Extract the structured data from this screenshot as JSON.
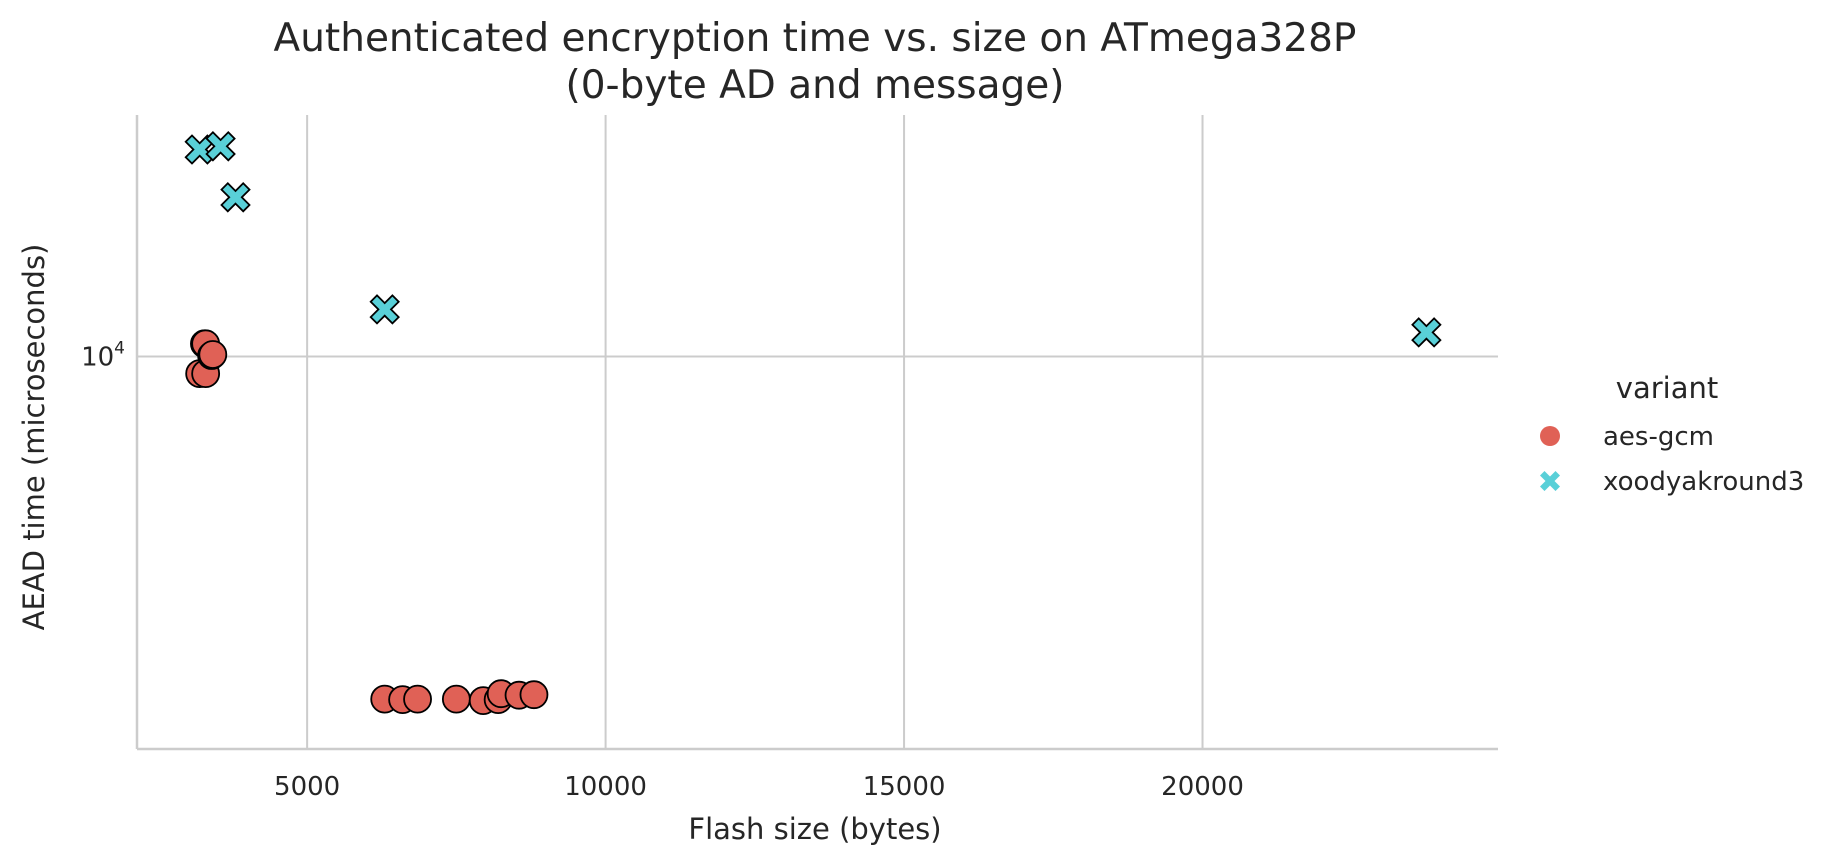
{
  "chart_data": {
    "type": "scatter",
    "title": [
      "Authenticated encryption time vs. size on ATmega328P",
      "(0-byte AD and message)"
    ],
    "xlabel": "Flash size (bytes)",
    "ylabel": "AEAD time (microseconds)",
    "xscale": "linear",
    "yscale": "log",
    "xlim": [
      2150,
      24950
    ],
    "ylim": [
      4520,
      16300
    ],
    "xticks": [
      5000,
      10000,
      15000,
      20000
    ],
    "xtick_labels": [
      "5000",
      "10000",
      "15000",
      "20000"
    ],
    "yticks": [
      10000
    ],
    "ytick_labels": [
      {
        "base": "10",
        "exp": "4"
      }
    ],
    "grid": true,
    "legend": {
      "title": "variant",
      "placement": "right",
      "entries": [
        "aes-gcm",
        "xoodyakround3"
      ]
    },
    "series": [
      {
        "name": "aes-gcm",
        "marker": "circle",
        "color": "#E06156",
        "points": [
          {
            "x": 3200,
            "y": 9660
          },
          {
            "x": 3300,
            "y": 9660
          },
          {
            "x": 3280,
            "y": 10260
          },
          {
            "x": 3300,
            "y": 10260
          },
          {
            "x": 3400,
            "y": 10020
          },
          {
            "x": 3420,
            "y": 10040
          },
          {
            "x": 6300,
            "y": 5000
          },
          {
            "x": 6600,
            "y": 4995
          },
          {
            "x": 6850,
            "y": 5000
          },
          {
            "x": 7500,
            "y": 5000
          },
          {
            "x": 7950,
            "y": 4985
          },
          {
            "x": 8200,
            "y": 4995
          },
          {
            "x": 8250,
            "y": 5055
          },
          {
            "x": 8550,
            "y": 5040
          },
          {
            "x": 8800,
            "y": 5045
          }
        ]
      },
      {
        "name": "xoodyakround3",
        "marker": "x",
        "color": "#59D0D8",
        "points": [
          {
            "x": 3200,
            "y": 15200
          },
          {
            "x": 3550,
            "y": 15300
          },
          {
            "x": 3800,
            "y": 13800
          },
          {
            "x": 6300,
            "y": 11000
          },
          {
            "x": 23750,
            "y": 10500
          }
        ]
      }
    ]
  }
}
